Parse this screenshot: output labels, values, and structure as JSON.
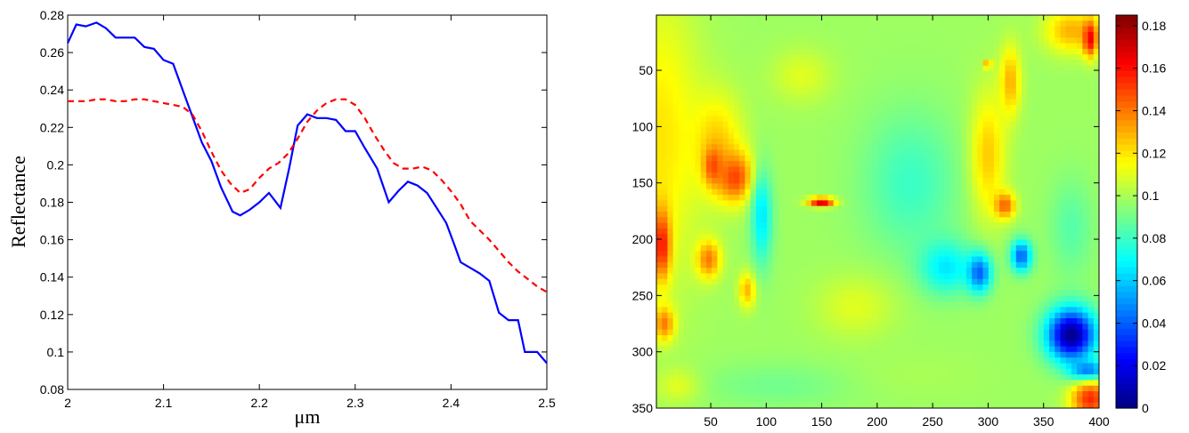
{
  "chart_data": [
    {
      "type": "line",
      "title": "",
      "xlabel": "μm",
      "ylabel": "Reflectance",
      "xlim": [
        2.0,
        2.5
      ],
      "ylim": [
        0.08,
        0.28
      ],
      "xticks": [
        "2",
        "2.1",
        "2.2",
        "2.3",
        "2.4",
        "2.5"
      ],
      "yticks": [
        "0.08",
        "0.1",
        "0.12",
        "0.14",
        "0.16",
        "0.18",
        "0.2",
        "0.22",
        "0.24",
        "0.26",
        "0.28"
      ],
      "grid": false,
      "series": [
        {
          "color": "#0000ff",
          "style": "solid",
          "x": [
            2.0,
            2.009,
            2.019,
            2.03,
            2.04,
            2.05,
            2.06,
            2.07,
            2.08,
            2.09,
            2.1,
            2.11,
            2.12,
            2.13,
            2.14,
            2.15,
            2.16,
            2.172,
            2.18,
            2.19,
            2.2,
            2.21,
            2.222,
            2.231,
            2.24,
            2.25,
            2.26,
            2.27,
            2.28,
            2.29,
            2.3,
            2.31,
            2.323,
            2.335,
            2.345,
            2.355,
            2.365,
            2.375,
            2.385,
            2.395,
            2.403,
            2.41,
            2.42,
            2.43,
            2.44,
            2.45,
            2.46,
            2.47,
            2.477,
            2.485,
            2.49,
            2.5
          ],
          "y": [
            0.265,
            0.275,
            0.274,
            0.276,
            0.273,
            0.268,
            0.268,
            0.268,
            0.263,
            0.262,
            0.256,
            0.254,
            0.24,
            0.226,
            0.212,
            0.202,
            0.188,
            0.175,
            0.173,
            0.176,
            0.18,
            0.185,
            0.177,
            0.198,
            0.221,
            0.227,
            0.225,
            0.225,
            0.224,
            0.218,
            0.218,
            0.209,
            0.198,
            0.18,
            0.186,
            0.191,
            0.189,
            0.185,
            0.177,
            0.169,
            0.158,
            0.148,
            0.145,
            0.142,
            0.138,
            0.121,
            0.117,
            0.117,
            0.1,
            0.1,
            0.1,
            0.094
          ]
        },
        {
          "color": "#ff0000",
          "style": "dashed",
          "x": [
            2.0,
            2.01,
            2.02,
            2.03,
            2.04,
            2.05,
            2.06,
            2.07,
            2.08,
            2.09,
            2.1,
            2.11,
            2.12,
            2.13,
            2.14,
            2.15,
            2.16,
            2.17,
            2.18,
            2.19,
            2.2,
            2.21,
            2.22,
            2.23,
            2.24,
            2.25,
            2.26,
            2.27,
            2.28,
            2.29,
            2.3,
            2.31,
            2.32,
            2.33,
            2.34,
            2.35,
            2.36,
            2.37,
            2.38,
            2.39,
            2.4,
            2.41,
            2.42,
            2.43,
            2.44,
            2.45,
            2.46,
            2.47,
            2.48,
            2.49,
            2.5
          ],
          "y": [
            0.234,
            0.234,
            0.234,
            0.235,
            0.235,
            0.234,
            0.234,
            0.235,
            0.235,
            0.234,
            0.233,
            0.232,
            0.231,
            0.227,
            0.218,
            0.207,
            0.197,
            0.19,
            0.185,
            0.187,
            0.193,
            0.198,
            0.201,
            0.206,
            0.214,
            0.223,
            0.229,
            0.233,
            0.235,
            0.235,
            0.232,
            0.225,
            0.216,
            0.208,
            0.201,
            0.198,
            0.198,
            0.199,
            0.197,
            0.192,
            0.186,
            0.179,
            0.17,
            0.165,
            0.16,
            0.154,
            0.148,
            0.143,
            0.139,
            0.135,
            0.132
          ]
        }
      ]
    },
    {
      "type": "heatmap",
      "title": "",
      "xlabel": "",
      "ylabel": "",
      "xlim": [
        1,
        400
      ],
      "ylim": [
        1,
        350
      ],
      "y_reversed": true,
      "xticks": [
        "50",
        "100",
        "150",
        "200",
        "250",
        "300",
        "350",
        "400"
      ],
      "yticks": [
        "50",
        "100",
        "150",
        "200",
        "250",
        "300",
        "350"
      ],
      "colormap": "jet",
      "clim": [
        0,
        0.185
      ],
      "colorbar_ticks": [
        "0",
        "0.02",
        "0.04",
        "0.06",
        "0.08",
        "0.1",
        "0.12",
        "0.14",
        "0.16",
        "0.18"
      ],
      "background_value": 0.098,
      "regions": [
        {
          "x": 5,
          "y": 110,
          "rx": 45,
          "ry": 160,
          "v": 0.12
        },
        {
          "x": 6,
          "y": 205,
          "rx": 10,
          "ry": 40,
          "v": 0.16
        },
        {
          "x": 8,
          "y": 275,
          "rx": 12,
          "ry": 20,
          "v": 0.14
        },
        {
          "x": 55,
          "y": 115,
          "rx": 30,
          "ry": 55,
          "v": 0.125
        },
        {
          "x": 72,
          "y": 145,
          "rx": 22,
          "ry": 28,
          "v": 0.15
        },
        {
          "x": 52,
          "y": 135,
          "rx": 10,
          "ry": 20,
          "v": 0.15
        },
        {
          "x": 48,
          "y": 218,
          "rx": 14,
          "ry": 22,
          "v": 0.14
        },
        {
          "x": 83,
          "y": 245,
          "rx": 10,
          "ry": 20,
          "v": 0.13
        },
        {
          "x": 96,
          "y": 180,
          "rx": 12,
          "ry": 55,
          "v": 0.065
        },
        {
          "x": 132,
          "y": 55,
          "rx": 35,
          "ry": 30,
          "v": 0.11
        },
        {
          "x": 150,
          "y": 167,
          "rx": 15,
          "ry": 5,
          "v": 0.175
        },
        {
          "x": 230,
          "y": 150,
          "rx": 55,
          "ry": 80,
          "v": 0.08
        },
        {
          "x": 262,
          "y": 225,
          "rx": 30,
          "ry": 30,
          "v": 0.065
        },
        {
          "x": 300,
          "y": 125,
          "rx": 20,
          "ry": 70,
          "v": 0.125
        },
        {
          "x": 320,
          "y": 60,
          "rx": 12,
          "ry": 40,
          "v": 0.13
        },
        {
          "x": 315,
          "y": 170,
          "rx": 12,
          "ry": 15,
          "v": 0.145
        },
        {
          "x": 292,
          "y": 230,
          "rx": 14,
          "ry": 22,
          "v": 0.04
        },
        {
          "x": 330,
          "y": 215,
          "rx": 12,
          "ry": 18,
          "v": 0.04
        },
        {
          "x": 300,
          "y": 45,
          "rx": 3,
          "ry": 4,
          "v": 0.18
        },
        {
          "x": 375,
          "y": 15,
          "rx": 30,
          "ry": 25,
          "v": 0.13
        },
        {
          "x": 392,
          "y": 22,
          "rx": 8,
          "ry": 20,
          "v": 0.165
        },
        {
          "x": 375,
          "y": 190,
          "rx": 25,
          "ry": 55,
          "v": 0.085
        },
        {
          "x": 375,
          "y": 285,
          "rx": 28,
          "ry": 30,
          "v": 0.002
        },
        {
          "x": 390,
          "y": 318,
          "rx": 20,
          "ry": 12,
          "v": 0.03
        },
        {
          "x": 392,
          "y": 342,
          "rx": 22,
          "ry": 22,
          "v": 0.155
        },
        {
          "x": 180,
          "y": 260,
          "rx": 45,
          "ry": 35,
          "v": 0.11
        },
        {
          "x": 110,
          "y": 330,
          "rx": 90,
          "ry": 25,
          "v": 0.09
        },
        {
          "x": 240,
          "y": 320,
          "rx": 70,
          "ry": 25,
          "v": 0.1
        },
        {
          "x": 20,
          "y": 330,
          "rx": 25,
          "ry": 20,
          "v": 0.11
        }
      ]
    }
  ]
}
